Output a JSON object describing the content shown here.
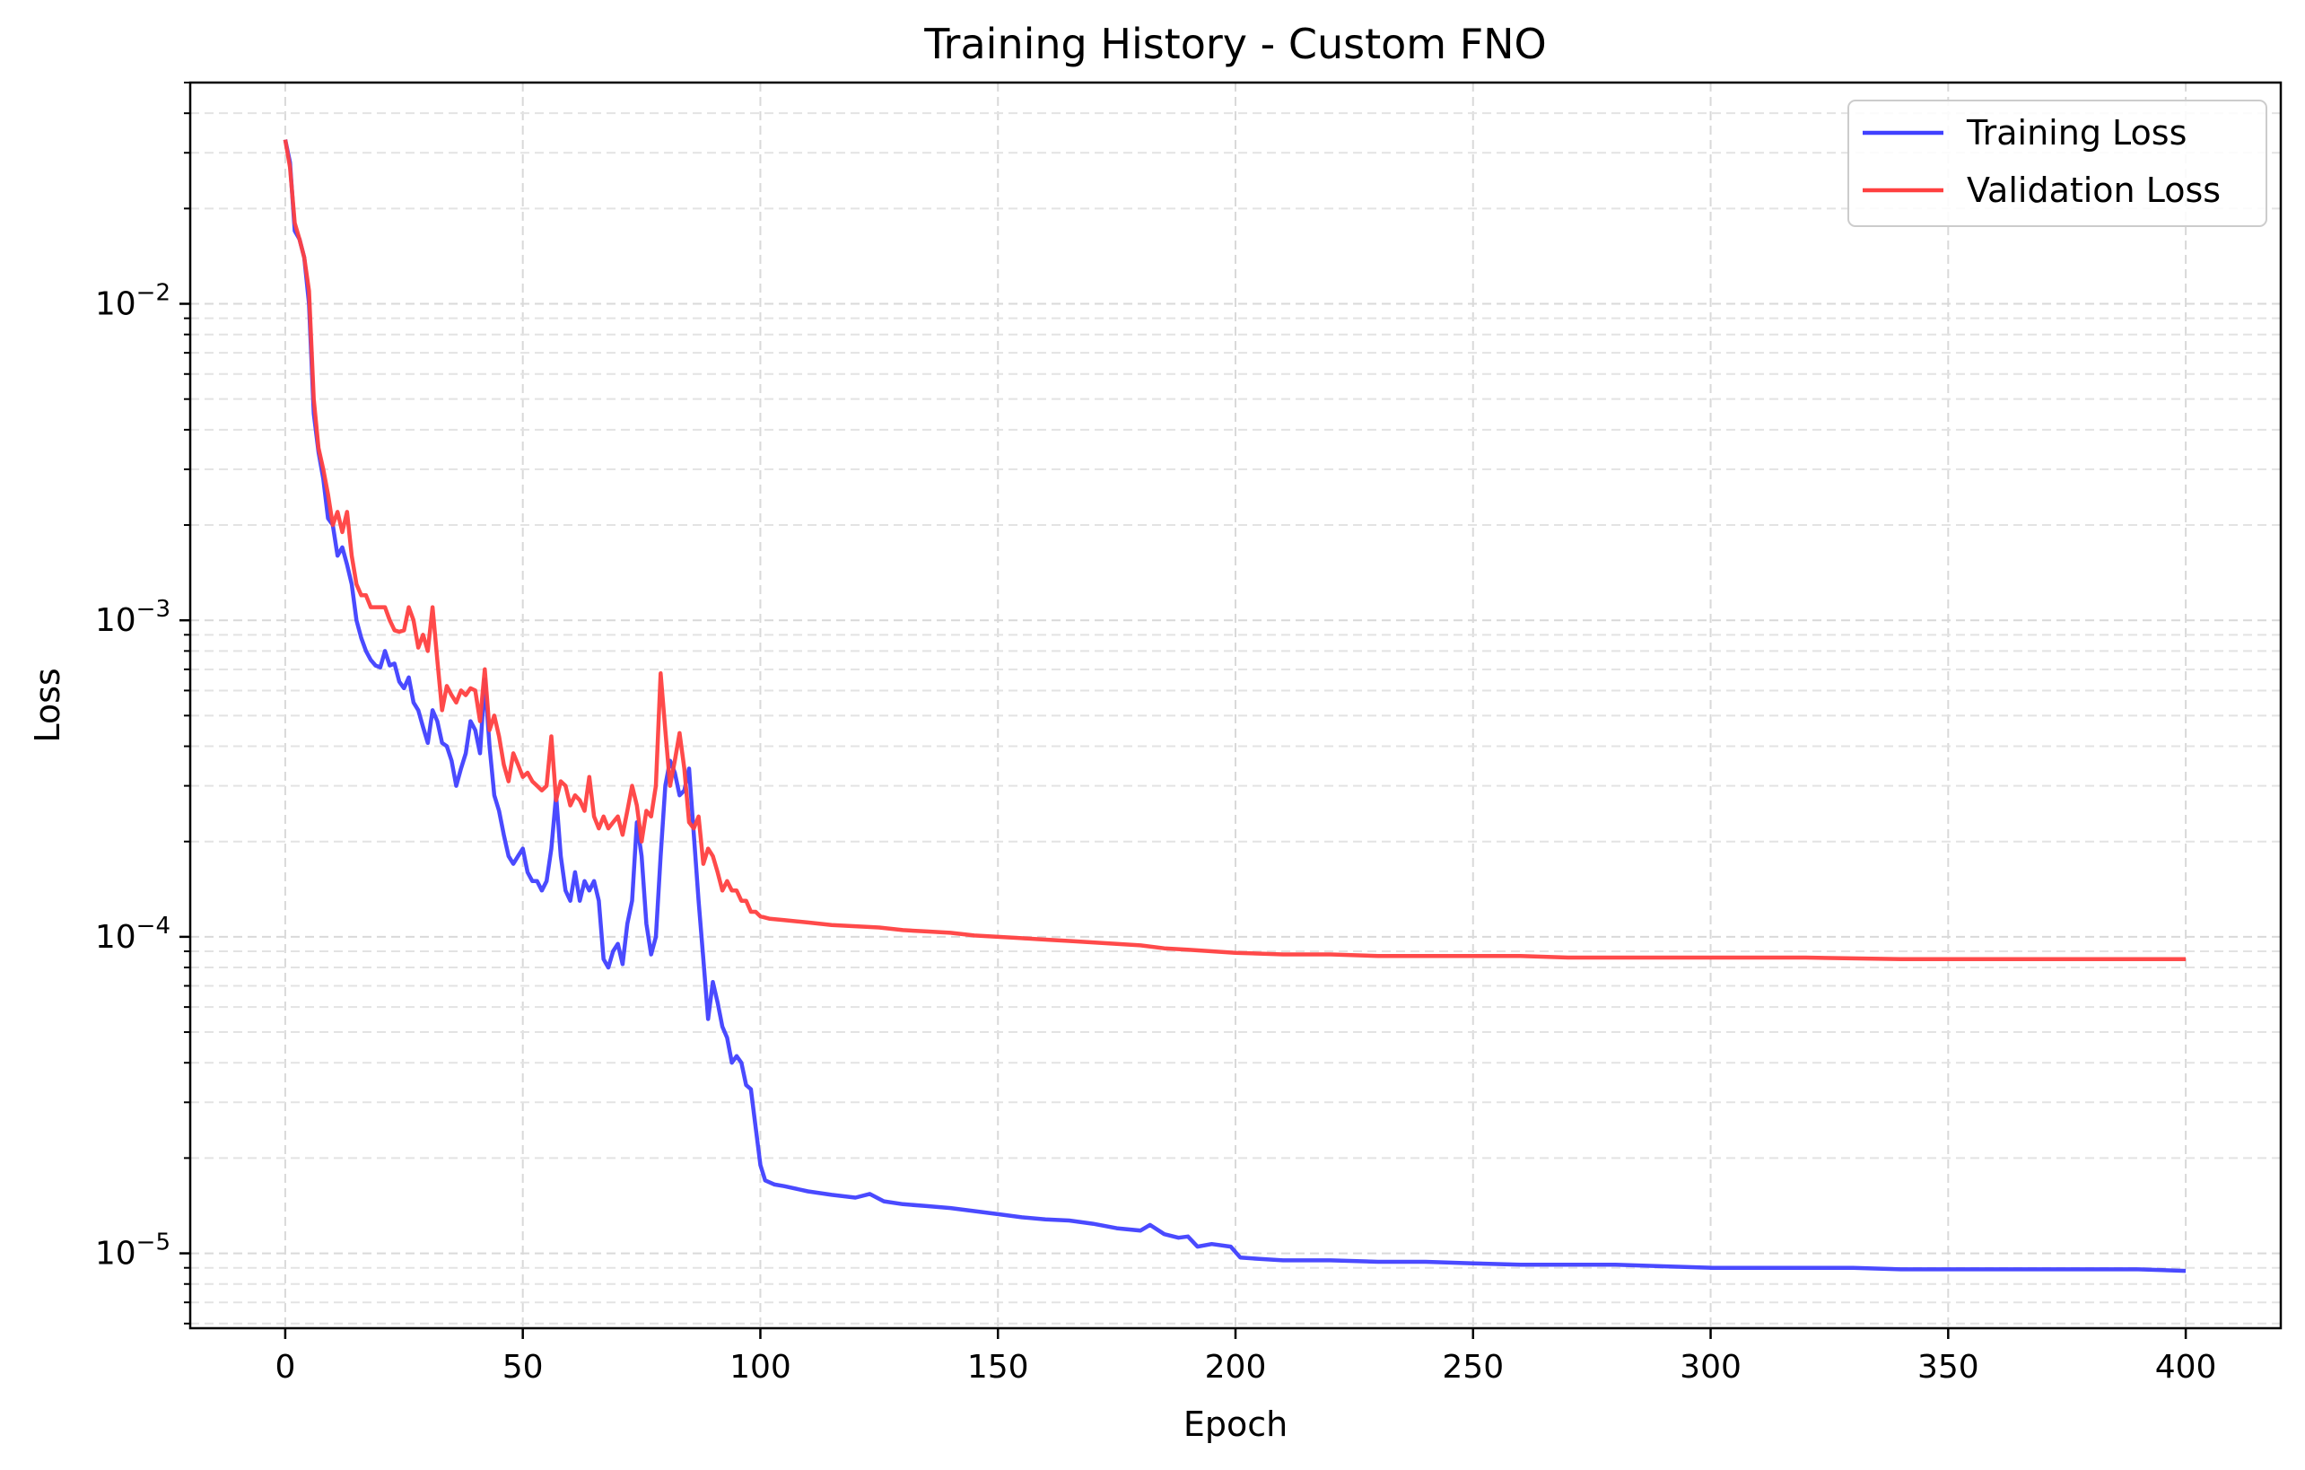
{
  "chart_data": {
    "type": "line",
    "title": "Training History - Custom FNO",
    "xlabel": "Epoch",
    "ylabel": "Loss",
    "yscale": "log",
    "xlim": [
      -20,
      420
    ],
    "ylim": [
      5.8e-06,
      0.05
    ],
    "x_ticks": [
      0,
      50,
      100,
      150,
      200,
      250,
      300,
      350,
      400
    ],
    "y_ticks": [
      {
        "base": "10",
        "exp": "−5",
        "value": 1e-05
      },
      {
        "base": "10",
        "exp": "−4",
        "value": 0.0001
      },
      {
        "base": "10",
        "exp": "−3",
        "value": 0.001
      },
      {
        "base": "10",
        "exp": "−2",
        "value": 0.01
      }
    ],
    "grid": true,
    "legend_position": "top-right",
    "series": [
      {
        "name": "Training Loss",
        "color": "#4040ff",
        "points": [
          [
            0,
            0.033
          ],
          [
            1,
            0.028
          ],
          [
            2,
            0.017
          ],
          [
            3,
            0.016
          ],
          [
            4,
            0.014
          ],
          [
            5,
            0.01
          ],
          [
            6,
            0.0045
          ],
          [
            7,
            0.0034
          ],
          [
            8,
            0.0028
          ],
          [
            9,
            0.0021
          ],
          [
            10,
            0.002
          ],
          [
            11,
            0.0016
          ],
          [
            12,
            0.0017
          ],
          [
            13,
            0.0015
          ],
          [
            14,
            0.0013
          ],
          [
            15,
            0.001
          ],
          [
            16,
            0.00088
          ],
          [
            17,
            0.0008
          ],
          [
            18,
            0.00075
          ],
          [
            19,
            0.00072
          ],
          [
            20,
            0.00071
          ],
          [
            21,
            0.0008
          ],
          [
            22,
            0.00072
          ],
          [
            23,
            0.00073
          ],
          [
            24,
            0.00064
          ],
          [
            25,
            0.00061
          ],
          [
            26,
            0.00066
          ],
          [
            27,
            0.00055
          ],
          [
            28,
            0.00052
          ],
          [
            29,
            0.00046
          ],
          [
            30,
            0.00041
          ],
          [
            31,
            0.00052
          ],
          [
            32,
            0.00048
          ],
          [
            33,
            0.00041
          ],
          [
            34,
            0.0004
          ],
          [
            35,
            0.00036
          ],
          [
            36,
            0.0003
          ],
          [
            37,
            0.00034
          ],
          [
            38,
            0.00038
          ],
          [
            39,
            0.00048
          ],
          [
            40,
            0.00045
          ],
          [
            41,
            0.00038
          ],
          [
            42,
            0.00065
          ],
          [
            43,
            0.0004
          ],
          [
            44,
            0.00028
          ],
          [
            45,
            0.00025
          ],
          [
            46,
            0.00021
          ],
          [
            47,
            0.00018
          ],
          [
            48,
            0.00017
          ],
          [
            49,
            0.00018
          ],
          [
            50,
            0.00019
          ],
          [
            51,
            0.00016
          ],
          [
            52,
            0.00015
          ],
          [
            53,
            0.00015
          ],
          [
            54,
            0.00014
          ],
          [
            55,
            0.00015
          ],
          [
            56,
            0.00019
          ],
          [
            57,
            0.00028
          ],
          [
            58,
            0.00018
          ],
          [
            59,
            0.00014
          ],
          [
            60,
            0.00013
          ],
          [
            61,
            0.00016
          ],
          [
            62,
            0.00013
          ],
          [
            63,
            0.00015
          ],
          [
            64,
            0.00014
          ],
          [
            65,
            0.00015
          ],
          [
            66,
            0.00013
          ],
          [
            67,
            8.5e-05
          ],
          [
            68,
            8e-05
          ],
          [
            69,
            9e-05
          ],
          [
            70,
            9.5e-05
          ],
          [
            71,
            8.2e-05
          ],
          [
            72,
            0.00011
          ],
          [
            73,
            0.00013
          ],
          [
            74,
            0.00023
          ],
          [
            75,
            0.00018
          ],
          [
            76,
            0.00011
          ],
          [
            77,
            8.8e-05
          ],
          [
            78,
            0.0001
          ],
          [
            79,
            0.00018
          ],
          [
            80,
            0.0003
          ],
          [
            81,
            0.00036
          ],
          [
            82,
            0.00033
          ],
          [
            83,
            0.00028
          ],
          [
            84,
            0.00029
          ],
          [
            85,
            0.00034
          ],
          [
            86,
            0.00021
          ],
          [
            87,
            0.00013
          ],
          [
            88,
            8.5e-05
          ],
          [
            89,
            5.5e-05
          ],
          [
            90,
            7.2e-05
          ],
          [
            91,
            6.2e-05
          ],
          [
            92,
            5.2e-05
          ],
          [
            93,
            4.8e-05
          ],
          [
            94,
            4e-05
          ],
          [
            95,
            4.2e-05
          ],
          [
            96,
            4e-05
          ],
          [
            97,
            3.4e-05
          ],
          [
            98,
            3.3e-05
          ],
          [
            99,
            2.5e-05
          ],
          [
            100,
            1.9e-05
          ],
          [
            101,
            1.7e-05
          ],
          [
            103,
            1.65e-05
          ],
          [
            105,
            1.63e-05
          ],
          [
            110,
            1.57e-05
          ],
          [
            115,
            1.53e-05
          ],
          [
            120,
            1.5e-05
          ],
          [
            123,
            1.54e-05
          ],
          [
            126,
            1.46e-05
          ],
          [
            130,
            1.43e-05
          ],
          [
            135,
            1.41e-05
          ],
          [
            140,
            1.39e-05
          ],
          [
            145,
            1.36e-05
          ],
          [
            150,
            1.33e-05
          ],
          [
            155,
            1.3e-05
          ],
          [
            160,
            1.28e-05
          ],
          [
            165,
            1.27e-05
          ],
          [
            170,
            1.24e-05
          ],
          [
            175,
            1.2e-05
          ],
          [
            180,
            1.18e-05
          ],
          [
            182,
            1.23e-05
          ],
          [
            185,
            1.15e-05
          ],
          [
            188,
            1.12e-05
          ],
          [
            190,
            1.13e-05
          ],
          [
            192,
            1.05e-05
          ],
          [
            195,
            1.07e-05
          ],
          [
            199,
            1.05e-05
          ],
          [
            201,
            9.7e-06
          ],
          [
            205,
            9.6e-06
          ],
          [
            210,
            9.5e-06
          ],
          [
            220,
            9.5e-06
          ],
          [
            230,
            9.4e-06
          ],
          [
            240,
            9.4e-06
          ],
          [
            250,
            9.3e-06
          ],
          [
            260,
            9.2e-06
          ],
          [
            270,
            9.2e-06
          ],
          [
            280,
            9.2e-06
          ],
          [
            290,
            9.1e-06
          ],
          [
            300,
            9e-06
          ],
          [
            310,
            9e-06
          ],
          [
            320,
            9e-06
          ],
          [
            330,
            9e-06
          ],
          [
            340,
            8.9e-06
          ],
          [
            350,
            8.9e-06
          ],
          [
            360,
            8.9e-06
          ],
          [
            370,
            8.9e-06
          ],
          [
            380,
            8.9e-06
          ],
          [
            390,
            8.9e-06
          ],
          [
            400,
            8.8e-06
          ]
        ]
      },
      {
        "name": "Validation Loss",
        "color": "#ff4040",
        "points": [
          [
            0,
            0.033
          ],
          [
            1,
            0.027
          ],
          [
            2,
            0.018
          ],
          [
            3,
            0.016
          ],
          [
            4,
            0.014
          ],
          [
            5,
            0.011
          ],
          [
            6,
            0.005
          ],
          [
            7,
            0.0035
          ],
          [
            8,
            0.003
          ],
          [
            9,
            0.0025
          ],
          [
            10,
            0.002
          ],
          [
            11,
            0.0022
          ],
          [
            12,
            0.0019
          ],
          [
            13,
            0.0022
          ],
          [
            14,
            0.0016
          ],
          [
            15,
            0.0013
          ],
          [
            16,
            0.0012
          ],
          [
            17,
            0.0012
          ],
          [
            18,
            0.0011
          ],
          [
            19,
            0.0011
          ],
          [
            20,
            0.0011
          ],
          [
            21,
            0.0011
          ],
          [
            22,
            0.001
          ],
          [
            23,
            0.00093
          ],
          [
            24,
            0.00092
          ],
          [
            25,
            0.00093
          ],
          [
            26,
            0.0011
          ],
          [
            27,
            0.001
          ],
          [
            28,
            0.00082
          ],
          [
            29,
            0.0009
          ],
          [
            30,
            0.0008
          ],
          [
            31,
            0.0011
          ],
          [
            32,
            0.00075
          ],
          [
            33,
            0.00052
          ],
          [
            34,
            0.00062
          ],
          [
            35,
            0.00058
          ],
          [
            36,
            0.00055
          ],
          [
            37,
            0.0006
          ],
          [
            38,
            0.00058
          ],
          [
            39,
            0.00061
          ],
          [
            40,
            0.0006
          ],
          [
            41,
            0.00048
          ],
          [
            42,
            0.0007
          ],
          [
            43,
            0.00045
          ],
          [
            44,
            0.0005
          ],
          [
            45,
            0.00043
          ],
          [
            46,
            0.00035
          ],
          [
            47,
            0.00031
          ],
          [
            48,
            0.00038
          ],
          [
            49,
            0.00035
          ],
          [
            50,
            0.00032
          ],
          [
            51,
            0.00033
          ],
          [
            52,
            0.00031
          ],
          [
            53,
            0.0003
          ],
          [
            54,
            0.00029
          ],
          [
            55,
            0.0003
          ],
          [
            56,
            0.00043
          ],
          [
            57,
            0.00027
          ],
          [
            58,
            0.00031
          ],
          [
            59,
            0.0003
          ],
          [
            60,
            0.00026
          ],
          [
            61,
            0.00028
          ],
          [
            62,
            0.00027
          ],
          [
            63,
            0.00025
          ],
          [
            64,
            0.00032
          ],
          [
            65,
            0.00024
          ],
          [
            66,
            0.00022
          ],
          [
            67,
            0.00024
          ],
          [
            68,
            0.00022
          ],
          [
            69,
            0.00023
          ],
          [
            70,
            0.00024
          ],
          [
            71,
            0.00021
          ],
          [
            72,
            0.00025
          ],
          [
            73,
            0.0003
          ],
          [
            74,
            0.00026
          ],
          [
            75,
            0.0002
          ],
          [
            76,
            0.00025
          ],
          [
            77,
            0.00024
          ],
          [
            78,
            0.0003
          ],
          [
            79,
            0.00068
          ],
          [
            80,
            0.00045
          ],
          [
            81,
            0.0003
          ],
          [
            82,
            0.00036
          ],
          [
            83,
            0.00044
          ],
          [
            84,
            0.00034
          ],
          [
            85,
            0.00023
          ],
          [
            86,
            0.00022
          ],
          [
            87,
            0.00024
          ],
          [
            88,
            0.00017
          ],
          [
            89,
            0.00019
          ],
          [
            90,
            0.00018
          ],
          [
            91,
            0.00016
          ],
          [
            92,
            0.00014
          ],
          [
            93,
            0.00015
          ],
          [
            94,
            0.00014
          ],
          [
            95,
            0.00014
          ],
          [
            96,
            0.00013
          ],
          [
            97,
            0.00013
          ],
          [
            98,
            0.00012
          ],
          [
            99,
            0.00012
          ],
          [
            100,
            0.000116
          ],
          [
            102,
            0.000114
          ],
          [
            105,
            0.000113
          ],
          [
            110,
            0.000111
          ],
          [
            115,
            0.000109
          ],
          [
            120,
            0.000108
          ],
          [
            125,
            0.000107
          ],
          [
            130,
            0.000105
          ],
          [
            135,
            0.000104
          ],
          [
            140,
            0.000103
          ],
          [
            145,
            0.000101
          ],
          [
            150,
            0.0001
          ],
          [
            155,
            9.9e-05
          ],
          [
            160,
            9.8e-05
          ],
          [
            165,
            9.7e-05
          ],
          [
            170,
            9.6e-05
          ],
          [
            175,
            9.5e-05
          ],
          [
            180,
            9.4e-05
          ],
          [
            185,
            9.2e-05
          ],
          [
            190,
            9.1e-05
          ],
          [
            195,
            9e-05
          ],
          [
            200,
            8.9e-05
          ],
          [
            210,
            8.8e-05
          ],
          [
            220,
            8.8e-05
          ],
          [
            230,
            8.7e-05
          ],
          [
            240,
            8.7e-05
          ],
          [
            250,
            8.7e-05
          ],
          [
            260,
            8.7e-05
          ],
          [
            270,
            8.6e-05
          ],
          [
            280,
            8.6e-05
          ],
          [
            290,
            8.6e-05
          ],
          [
            300,
            8.6e-05
          ],
          [
            320,
            8.6e-05
          ],
          [
            340,
            8.5e-05
          ],
          [
            360,
            8.5e-05
          ],
          [
            380,
            8.5e-05
          ],
          [
            400,
            8.5e-05
          ]
        ]
      }
    ]
  }
}
